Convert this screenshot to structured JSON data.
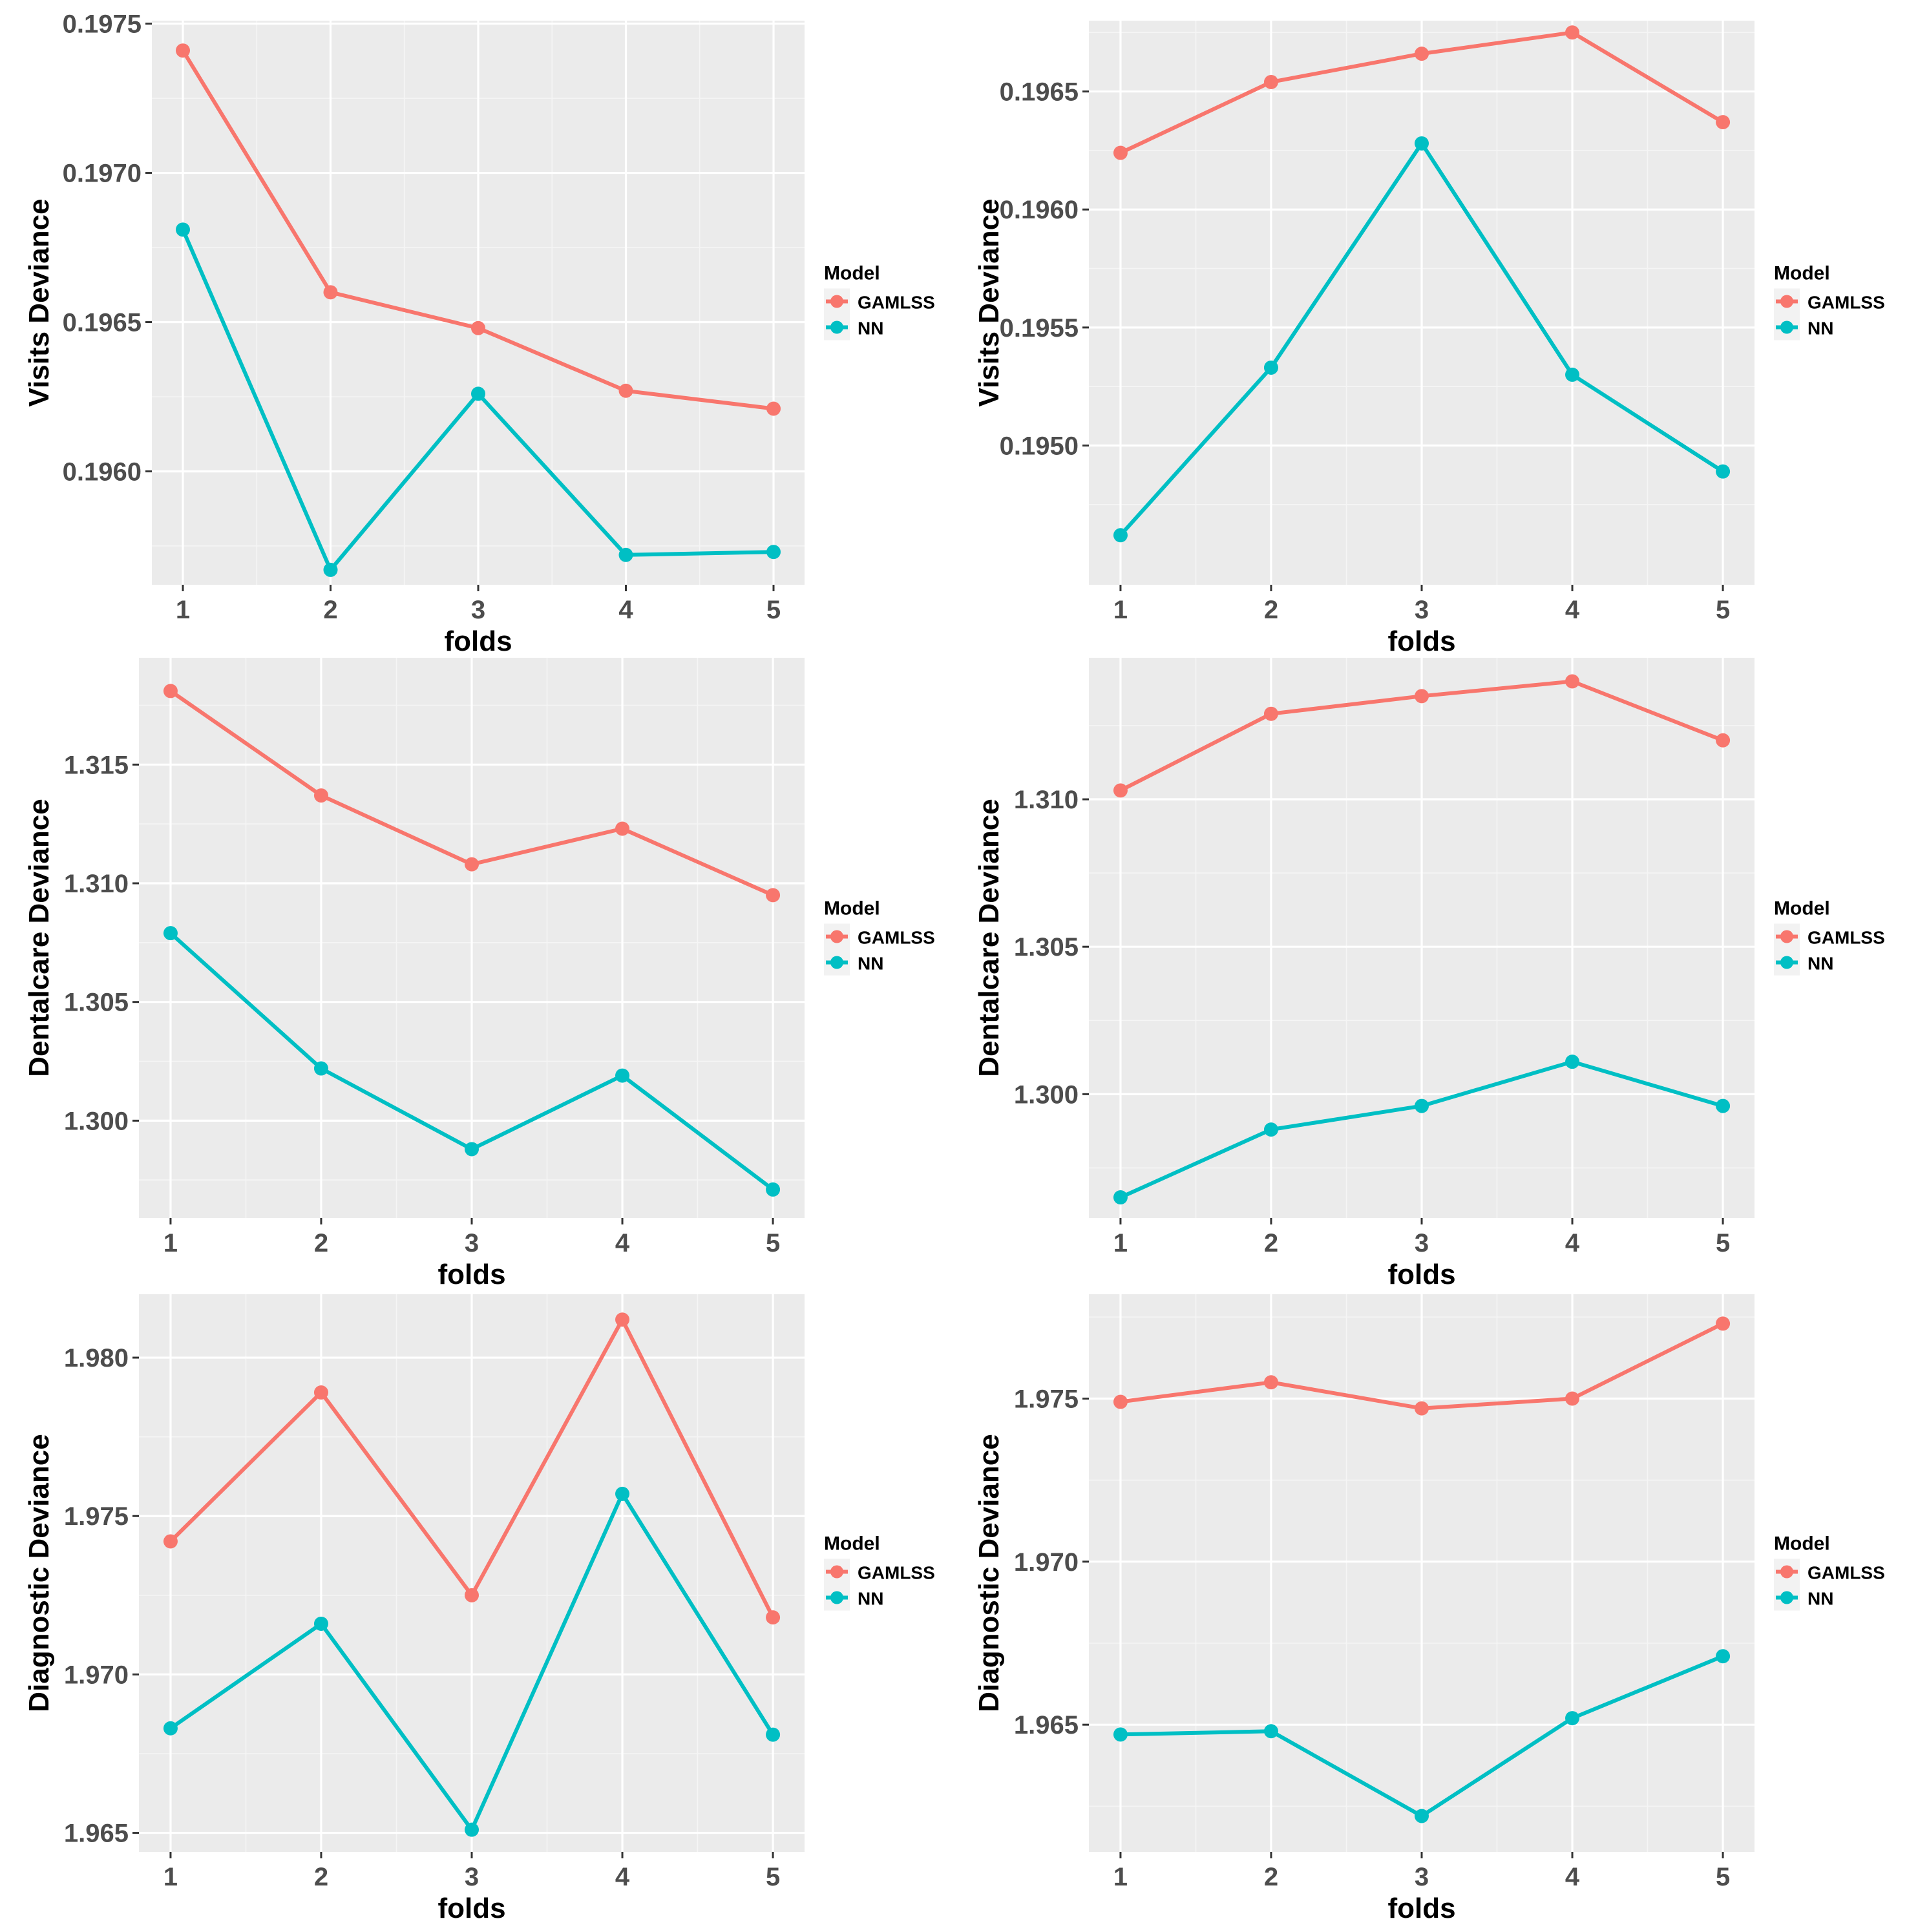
{
  "legend": {
    "title": "Model",
    "entries": [
      "GAMLSS",
      "NN"
    ]
  },
  "colors": {
    "GAMLSS": "#F8766D",
    "NN": "#00BFC4",
    "panel": "#EBEBEB",
    "grid": "#FFFFFF",
    "tick_text": "#4D4D4D"
  },
  "chart_data": [
    {
      "type": "line",
      "xlabel": "folds",
      "ylabel": "Visits Deviance",
      "x": [
        1,
        2,
        3,
        4,
        5
      ],
      "xlim": [
        0.79,
        5.21
      ],
      "ylim": [
        0.19562,
        0.19751
      ],
      "yticks": [
        "0.1960",
        "0.1965",
        "0.1970",
        "0.1975"
      ],
      "series": [
        {
          "name": "GAMLSS",
          "values": [
            0.19741,
            0.1966,
            0.19648,
            0.19627,
            0.19621
          ]
        },
        {
          "name": "NN",
          "values": [
            0.19681,
            0.19567,
            0.19626,
            0.19572,
            0.19573
          ]
        }
      ]
    },
    {
      "type": "line",
      "xlabel": "folds",
      "ylabel": "Visits Deviance",
      "x": [
        1,
        2,
        3,
        4,
        5
      ],
      "xlim": [
        0.79,
        5.21
      ],
      "ylim": [
        0.19441,
        0.1968
      ],
      "yticks": [
        "0.1950",
        "0.1955",
        "0.1960",
        "0.1965"
      ],
      "series": [
        {
          "name": "GAMLSS",
          "values": [
            0.19624,
            0.19654,
            0.19666,
            0.19675,
            0.19637
          ]
        },
        {
          "name": "NN",
          "values": [
            0.19462,
            0.19533,
            0.19628,
            0.1953,
            0.19489
          ]
        }
      ]
    },
    {
      "type": "line",
      "xlabel": "folds",
      "ylabel": "Dentalcare Deviance",
      "x": [
        1,
        2,
        3,
        4,
        5
      ],
      "xlim": [
        0.79,
        5.21
      ],
      "ylim": [
        1.2959,
        1.3195
      ],
      "yticks": [
        "1.300",
        "1.305",
        "1.310",
        "1.315"
      ],
      "series": [
        {
          "name": "GAMLSS",
          "values": [
            1.3181,
            1.3137,
            1.3108,
            1.3123,
            1.3095
          ]
        },
        {
          "name": "NN",
          "values": [
            1.3079,
            1.3022,
            1.2988,
            1.3019,
            1.2971
          ]
        }
      ]
    },
    {
      "type": "line",
      "xlabel": "folds",
      "ylabel": "Dentalcare Deviance",
      "x": [
        1,
        2,
        3,
        4,
        5
      ],
      "xlim": [
        0.79,
        5.21
      ],
      "ylim": [
        1.2958,
        1.3148
      ],
      "yticks": [
        "1.300",
        "1.305",
        "1.310"
      ],
      "series": [
        {
          "name": "GAMLSS",
          "values": [
            1.3103,
            1.3129,
            1.3135,
            1.314,
            1.312
          ]
        },
        {
          "name": "NN",
          "values": [
            1.2965,
            1.2988,
            1.2996,
            1.3011,
            1.2996
          ]
        }
      ]
    },
    {
      "type": "line",
      "xlabel": "folds",
      "ylabel": "Diagnostic Deviance",
      "x": [
        1,
        2,
        3,
        4,
        5
      ],
      "xlim": [
        0.79,
        5.21
      ],
      "ylim": [
        1.9644,
        1.982
      ],
      "yticks": [
        "1.965",
        "1.970",
        "1.975",
        "1.980"
      ],
      "series": [
        {
          "name": "GAMLSS",
          "values": [
            1.9742,
            1.9789,
            1.9725,
            1.9812,
            1.9718
          ]
        },
        {
          "name": "NN",
          "values": [
            1.9683,
            1.9716,
            1.9651,
            1.9757,
            1.9681
          ]
        }
      ]
    },
    {
      "type": "line",
      "xlabel": "folds",
      "ylabel": "Diagnostic Deviance",
      "x": [
        1,
        2,
        3,
        4,
        5
      ],
      "xlim": [
        0.79,
        5.21
      ],
      "ylim": [
        1.9611,
        1.9782
      ],
      "yticks": [
        "1.965",
        "1.970",
        "1.975"
      ],
      "series": [
        {
          "name": "GAMLSS",
          "values": [
            1.9749,
            1.9755,
            1.9747,
            1.975,
            1.9773
          ]
        },
        {
          "name": "NN",
          "values": [
            1.9647,
            1.9648,
            1.9622,
            1.9652,
            1.9671
          ]
        }
      ]
    }
  ]
}
